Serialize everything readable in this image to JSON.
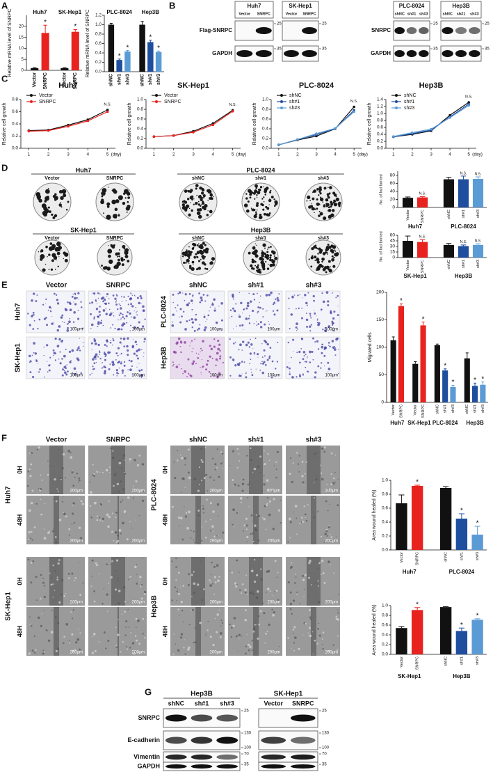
{
  "panel_labels": [
    "A",
    "B",
    "C",
    "D",
    "E",
    "F",
    "G"
  ],
  "chart_data": [
    {
      "type": "bar",
      "ylabel": "Relative mRNA level of SNRPC",
      "group_labels": [
        "Huh7",
        "SK-Hep1"
      ],
      "categories": [
        "Vector",
        "SNRPC",
        "Vector",
        "SNRPC"
      ],
      "values": [
        1,
        17,
        1,
        17.5
      ],
      "errors": [
        0.2,
        3.5,
        0.2,
        1
      ],
      "colors": [
        "#111111",
        "#e8231f",
        "#111111",
        "#e8231f"
      ],
      "annotations": [
        null,
        "*",
        null,
        "*"
      ],
      "ylim": [
        0,
        25
      ],
      "yticks": [
        0,
        5,
        10,
        15,
        20
      ]
    },
    {
      "type": "bar",
      "ylabel": "Relative mRNA level of SNRPC",
      "group_labels": [
        "PLC-8024",
        "Hep3B"
      ],
      "categories": [
        "shNC",
        "sh#1",
        "sh#3",
        "shNC",
        "sh#1",
        "sh#3"
      ],
      "values": [
        1,
        0.25,
        0.43,
        1,
        0.63,
        0.42
      ],
      "errors": [
        0.03,
        0.02,
        0.02,
        0.07,
        0.04,
        0.02
      ],
      "colors": [
        "#111111",
        "#1f4e9e",
        "#5b9bd5",
        "#111111",
        "#1f4e9e",
        "#5b9bd5"
      ],
      "annotations": [
        null,
        "*",
        "*",
        null,
        "*",
        "*"
      ],
      "ylim": [
        0,
        1.2
      ],
      "yticks": [
        {
          "value": 0,
          "label": "0.0"
        },
        0.2,
        0.4,
        0.6,
        0.8,
        {
          "value": 1,
          "label": "1.0"
        },
        1.2
      ]
    },
    {
      "type": "line",
      "title": "Huh7",
      "ylabel": "Relative cell growth",
      "xlabel": "(day)",
      "annotation": "N.S.",
      "x": [
        1,
        2,
        3,
        4,
        5
      ],
      "xlim": [
        0.6,
        5.4
      ],
      "xticks": [
        1,
        2,
        3,
        4,
        5
      ],
      "ylim": [
        0,
        0.8
      ],
      "yticks": [
        {
          "value": 0,
          "label": "0.0"
        },
        0.2,
        0.4,
        0.6,
        0.8
      ],
      "series": [
        {
          "name": "Vector",
          "color": "#111111",
          "values": [
            0.29,
            0.3,
            0.38,
            0.47,
            0.63
          ]
        },
        {
          "name": "SNRPC",
          "color": "#e8231f",
          "values": [
            0.28,
            0.29,
            0.36,
            0.45,
            0.6
          ]
        }
      ]
    },
    {
      "type": "line",
      "title": "SK-Hep1",
      "ylabel": "Relative cell growth",
      "xlabel": "(day)",
      "annotation": "N.S.",
      "x": [
        1,
        2,
        3,
        4,
        5
      ],
      "xlim": [
        0.6,
        5.4
      ],
      "xticks": [
        1,
        2,
        3,
        4,
        5
      ],
      "ylim": [
        0,
        1
      ],
      "yticks": [
        {
          "value": 0,
          "label": "0.0"
        },
        0.2,
        0.4,
        0.6,
        0.8,
        {
          "value": 1,
          "label": "1.0"
        }
      ],
      "series": [
        {
          "name": "Vector",
          "color": "#111111",
          "values": [
            0.24,
            0.26,
            0.35,
            0.51,
            0.78
          ]
        },
        {
          "name": "SNRPC",
          "color": "#e8231f",
          "values": [
            0.24,
            0.26,
            0.33,
            0.48,
            0.76
          ]
        }
      ]
    },
    {
      "type": "line",
      "title": "PLC-8024",
      "ylabel": "Relative cell growth",
      "xlabel": "(day)",
      "annotation": "N.S.",
      "x": [
        1,
        2,
        3,
        4,
        5
      ],
      "xlim": [
        0.6,
        5.4
      ],
      "xticks": [
        1,
        2,
        3,
        4,
        5
      ],
      "ylim": [
        0,
        1
      ],
      "yticks": [
        {
          "value": 0,
          "label": "0.0"
        },
        0.2,
        0.4,
        0.6,
        0.8,
        {
          "value": 1,
          "label": "1.0"
        }
      ],
      "series": [
        {
          "name": "shNC",
          "color": "#111111",
          "values": [
            0.07,
            0.17,
            0.25,
            0.4,
            0.85
          ]
        },
        {
          "name": "sh#1",
          "color": "#1f4e9e",
          "values": [
            0.07,
            0.18,
            0.28,
            0.4,
            0.78
          ]
        },
        {
          "name": "sh#3",
          "color": "#5b9bd5",
          "values": [
            0.07,
            0.18,
            0.3,
            0.41,
            0.75
          ]
        }
      ]
    },
    {
      "type": "line",
      "title": "Hep3B",
      "ylabel": "Relative cell growth",
      "xlabel": "(day)",
      "annotation": "N.S.",
      "x": [
        1,
        2,
        3,
        4,
        5
      ],
      "xlim": [
        0.6,
        5.4
      ],
      "xticks": [
        1,
        2,
        3,
        4,
        5
      ],
      "ylim": [
        0,
        1.4
      ],
      "yticks": [
        {
          "value": 0,
          "label": "0.0"
        },
        0.2,
        0.4,
        0.6,
        0.8,
        {
          "value": 1,
          "label": "1.0"
        },
        1.2,
        1.4
      ],
      "series": [
        {
          "name": "shNC",
          "color": "#111111",
          "values": [
            0.33,
            0.4,
            0.5,
            0.95,
            1.32
          ]
        },
        {
          "name": "sh#1",
          "color": "#1f4e9e",
          "values": [
            0.33,
            0.42,
            0.52,
            0.9,
            1.27
          ]
        },
        {
          "name": "sh#3",
          "color": "#5b9bd5",
          "values": [
            0.34,
            0.45,
            0.55,
            0.88,
            1.23
          ]
        }
      ]
    },
    {
      "type": "bar",
      "ylabel": "No. of foci formed",
      "group_labels": [
        "Huh7",
        "PLC-8024"
      ],
      "categories": [
        "Vector",
        "SNRPC",
        "shNC",
        "sh#1",
        "sh#3"
      ],
      "values": [
        24,
        25,
        70,
        70,
        71
      ],
      "errors": [
        2,
        2,
        5,
        8,
        5
      ],
      "colors": [
        "#111111",
        "#e8231f",
        "#111111",
        "#1f4e9e",
        "#5b9bd5"
      ],
      "annotations": [
        null,
        "N.S.",
        null,
        "N.S.",
        "N.S."
      ],
      "ylim": [
        0,
        90
      ],
      "yticks": [
        0,
        20,
        40,
        60,
        80
      ]
    },
    {
      "type": "bar",
      "ylabel": "No. of foci formed",
      "group_labels": [
        "SK-Hep1",
        "Hep3B"
      ],
      "categories": [
        "Vector",
        "SNRPC",
        "shNC",
        "sh#1",
        "sh#3"
      ],
      "values": [
        45,
        42,
        34,
        31,
        34
      ],
      "errors": [
        13,
        6,
        4,
        3,
        3
      ],
      "colors": [
        "#111111",
        "#e8231f",
        "#111111",
        "#1f4e9e",
        "#5b9bd5"
      ],
      "annotations": [
        null,
        "N.S.",
        null,
        "N.S.",
        "N.S."
      ],
      "ylim": [
        0,
        60
      ],
      "yticks": [
        0,
        15,
        30,
        45,
        60
      ]
    },
    {
      "type": "bar",
      "ylabel": "Migrated cells",
      "group_labels": [
        "Huh7",
        "SK-Hep1",
        "PLC-8024",
        "Hep3B"
      ],
      "categories": [
        "Vector",
        "SNRPC",
        "Vector",
        "SNRPC",
        "shNC",
        "sh#1",
        "sh#3",
        "shNC",
        "sh#1",
        "sh#3"
      ],
      "values": [
        113,
        175,
        70,
        140,
        104,
        58,
        28,
        80,
        30,
        32
      ],
      "errors": [
        6,
        4,
        4,
        6,
        2,
        3,
        3,
        10,
        5,
        5
      ],
      "colors": [
        "#111111",
        "#e8231f",
        "#111111",
        "#e8231f",
        "#111111",
        "#1f4e9e",
        "#5b9bd5",
        "#111111",
        "#1f4e9e",
        "#5b9bd5"
      ],
      "annotations": [
        null,
        "*",
        null,
        "*",
        null,
        "*",
        "*",
        null,
        "*",
        "*"
      ],
      "ylim": [
        0,
        200
      ],
      "yticks": [
        0,
        50,
        100,
        150,
        200
      ]
    },
    {
      "type": "bar",
      "ylabel": "Area wound healed (%)",
      "group_labels": [
        "Huh7",
        "PLC-8024"
      ],
      "categories": [
        "Vector",
        "SNRPC",
        "shNC",
        "sh#1",
        "sh#3"
      ],
      "values": [
        0.67,
        0.92,
        0.89,
        0.45,
        0.22
      ],
      "errors": [
        0.12,
        0.01,
        0.02,
        0.07,
        0.12
      ],
      "colors": [
        "#111111",
        "#e8231f",
        "#111111",
        "#1f4e9e",
        "#5b9bd5"
      ],
      "annotations": [
        null,
        "*",
        null,
        "*",
        "*"
      ],
      "ylim": [
        0,
        1
      ],
      "yticks": [
        {
          "value": 0,
          "label": "0.0"
        },
        0.2,
        0.4,
        0.6,
        0.8,
        {
          "value": 1,
          "label": "1.0"
        }
      ]
    },
    {
      "type": "bar",
      "ylabel": "Area wound healed (%)",
      "group_labels": [
        "SK-Hep1",
        "Hep3B"
      ],
      "categories": [
        "Vector",
        "SNRPC",
        "shNC",
        "sh#1",
        "sh#3"
      ],
      "values": [
        0.54,
        0.91,
        0.97,
        0.48,
        0.71
      ],
      "errors": [
        0.03,
        0.05,
        0.01,
        0.06,
        0.02
      ],
      "colors": [
        "#111111",
        "#e8231f",
        "#111111",
        "#1f4e9e",
        "#5b9bd5"
      ],
      "annotations": [
        null,
        "*",
        null,
        "*",
        "*"
      ],
      "ylim": [
        0,
        1
      ],
      "yticks": [
        {
          "value": 0,
          "label": "0.0"
        },
        0.2,
        0.4,
        0.6,
        0.8,
        {
          "value": 1,
          "label": "1.0"
        }
      ]
    }
  ],
  "blot_b": {
    "left": {
      "cell_lines": [
        "Huh7",
        "SK-Hep1"
      ],
      "lanes": [
        [
          "Vector",
          "SNRPC"
        ],
        [
          "Vector",
          "SNRPC"
        ]
      ],
      "rows": [
        "Flag-SNRPC",
        "GAPDH"
      ],
      "markers": [
        25,
        35
      ]
    },
    "right": {
      "cell_lines": [
        "PLC-8024",
        "Hep3B"
      ],
      "lanes": [
        [
          "shNC",
          "sh#1",
          "sh#3"
        ],
        [
          "shNC",
          "sh#1",
          "sh#3"
        ]
      ],
      "rows": [
        "SNRPC",
        "GAPDH"
      ],
      "markers": [
        25,
        35
      ]
    }
  },
  "foci": {
    "rows": [
      [
        "Huh7",
        "PLC-8024"
      ],
      [
        "SK-Hep1",
        "Hep3B"
      ]
    ],
    "conditions": [
      [
        "Vector",
        "SNRPC"
      ],
      [
        "shNC",
        "sh#1",
        "sh#3"
      ]
    ]
  },
  "migration": {
    "columns": [
      [
        "Vector",
        "SNRPC"
      ],
      [
        "shNC",
        "sh#1",
        "sh#3"
      ]
    ],
    "rows": [
      [
        "Huh7",
        "SK-Hep1"
      ],
      [
        "PLC-8024",
        "Hep3B"
      ]
    ],
    "scale_bar": "100μm"
  },
  "wound": {
    "columns": [
      [
        "Vector",
        "SNRPC"
      ],
      [
        "shNC",
        "sh#1",
        "sh#3"
      ]
    ],
    "rows": [
      [
        "Huh7",
        "SK-Hep1"
      ],
      [
        "PLC-8024",
        "Hep3B"
      ]
    ],
    "timepoints": [
      "0H",
      "48H"
    ],
    "scale_bar": "200μm"
  },
  "blot_g": {
    "cell_lines": [
      "Hep3B",
      "SK-Hep1"
    ],
    "lanes": [
      [
        "shNC",
        "sh#1",
        "sh#3"
      ],
      [
        "Vector",
        "SNRPC"
      ]
    ],
    "rows": [
      "SNRPC",
      "E-cadherin",
      "Vimentin",
      "GAPDH"
    ],
    "markers": [
      [
        25
      ],
      [
        130,
        100
      ],
      [
        70
      ],
      [
        35
      ]
    ]
  }
}
